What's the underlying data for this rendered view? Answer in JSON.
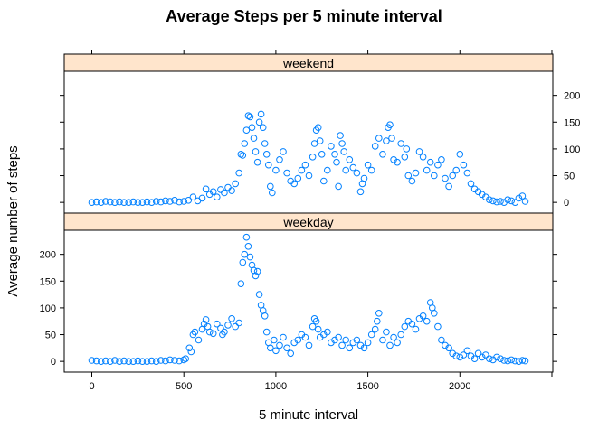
{
  "chart_data": {
    "type": "scatter",
    "title": "Average Steps per 5 minute interval",
    "xlabel": "5 minute interval",
    "ylabel": "Average number of steps",
    "xlim": [
      -150,
      2505
    ],
    "ylim": [
      -20,
      245
    ],
    "x_ticks": [
      0,
      500,
      1000,
      1500,
      2000
    ],
    "y_ticks": [
      0,
      50,
      100,
      150,
      200
    ],
    "grid": false,
    "point_color": "#0080ff",
    "strip_color": "#ffe5cc",
    "panels": [
      {
        "name": "weekend",
        "points": [
          [
            0,
            0
          ],
          [
            25,
            1
          ],
          [
            50,
            0
          ],
          [
            75,
            2
          ],
          [
            100,
            1
          ],
          [
            125,
            0
          ],
          [
            150,
            1
          ],
          [
            175,
            0
          ],
          [
            200,
            0
          ],
          [
            225,
            1
          ],
          [
            250,
            0
          ],
          [
            275,
            0
          ],
          [
            300,
            1
          ],
          [
            325,
            0
          ],
          [
            350,
            2
          ],
          [
            375,
            1
          ],
          [
            400,
            3
          ],
          [
            425,
            2
          ],
          [
            450,
            4
          ],
          [
            475,
            1
          ],
          [
            500,
            2
          ],
          [
            525,
            4
          ],
          [
            550,
            10
          ],
          [
            575,
            3
          ],
          [
            600,
            8
          ],
          [
            620,
            25
          ],
          [
            640,
            15
          ],
          [
            660,
            20
          ],
          [
            680,
            10
          ],
          [
            700,
            24
          ],
          [
            720,
            18
          ],
          [
            740,
            28
          ],
          [
            760,
            22
          ],
          [
            780,
            35
          ],
          [
            800,
            55
          ],
          [
            810,
            90
          ],
          [
            820,
            88
          ],
          [
            830,
            110
          ],
          [
            840,
            135
          ],
          [
            850,
            162
          ],
          [
            860,
            160
          ],
          [
            870,
            140
          ],
          [
            880,
            120
          ],
          [
            890,
            95
          ],
          [
            900,
            75
          ],
          [
            910,
            150
          ],
          [
            920,
            165
          ],
          [
            930,
            140
          ],
          [
            940,
            110
          ],
          [
            950,
            90
          ],
          [
            960,
            70
          ],
          [
            970,
            30
          ],
          [
            980,
            18
          ],
          [
            1000,
            60
          ],
          [
            1020,
            80
          ],
          [
            1040,
            95
          ],
          [
            1060,
            55
          ],
          [
            1080,
            40
          ],
          [
            1100,
            35
          ],
          [
            1120,
            45
          ],
          [
            1140,
            60
          ],
          [
            1160,
            70
          ],
          [
            1180,
            50
          ],
          [
            1200,
            85
          ],
          [
            1210,
            110
          ],
          [
            1220,
            135
          ],
          [
            1230,
            140
          ],
          [
            1240,
            115
          ],
          [
            1250,
            90
          ],
          [
            1260,
            40
          ],
          [
            1280,
            60
          ],
          [
            1300,
            105
          ],
          [
            1320,
            90
          ],
          [
            1330,
            75
          ],
          [
            1340,
            30
          ],
          [
            1350,
            125
          ],
          [
            1360,
            110
          ],
          [
            1370,
            95
          ],
          [
            1380,
            60
          ],
          [
            1400,
            80
          ],
          [
            1420,
            65
          ],
          [
            1440,
            55
          ],
          [
            1460,
            20
          ],
          [
            1470,
            35
          ],
          [
            1480,
            45
          ],
          [
            1500,
            70
          ],
          [
            1520,
            60
          ],
          [
            1540,
            105
          ],
          [
            1560,
            120
          ],
          [
            1580,
            90
          ],
          [
            1600,
            115
          ],
          [
            1610,
            140
          ],
          [
            1620,
            145
          ],
          [
            1630,
            120
          ],
          [
            1640,
            80
          ],
          [
            1660,
            75
          ],
          [
            1680,
            110
          ],
          [
            1700,
            85
          ],
          [
            1710,
            100
          ],
          [
            1720,
            50
          ],
          [
            1740,
            40
          ],
          [
            1760,
            55
          ],
          [
            1780,
            95
          ],
          [
            1800,
            85
          ],
          [
            1820,
            60
          ],
          [
            1840,
            75
          ],
          [
            1860,
            50
          ],
          [
            1880,
            70
          ],
          [
            1900,
            80
          ],
          [
            1920,
            45
          ],
          [
            1940,
            30
          ],
          [
            1960,
            50
          ],
          [
            1980,
            60
          ],
          [
            2000,
            90
          ],
          [
            2020,
            70
          ],
          [
            2040,
            55
          ],
          [
            2060,
            35
          ],
          [
            2080,
            25
          ],
          [
            2100,
            20
          ],
          [
            2120,
            15
          ],
          [
            2140,
            10
          ],
          [
            2160,
            5
          ],
          [
            2180,
            3
          ],
          [
            2200,
            1
          ],
          [
            2220,
            2
          ],
          [
            2240,
            0
          ],
          [
            2260,
            5
          ],
          [
            2280,
            3
          ],
          [
            2300,
            0
          ],
          [
            2320,
            8
          ],
          [
            2340,
            12
          ],
          [
            2355,
            2
          ]
        ]
      },
      {
        "name": "weekday",
        "points": [
          [
            0,
            2
          ],
          [
            25,
            1
          ],
          [
            50,
            0
          ],
          [
            75,
            1
          ],
          [
            100,
            0
          ],
          [
            125,
            2
          ],
          [
            150,
            0
          ],
          [
            175,
            1
          ],
          [
            200,
            0
          ],
          [
            225,
            0
          ],
          [
            250,
            1
          ],
          [
            275,
            0
          ],
          [
            300,
            0
          ],
          [
            325,
            1
          ],
          [
            350,
            0
          ],
          [
            375,
            2
          ],
          [
            400,
            1
          ],
          [
            425,
            3
          ],
          [
            450,
            2
          ],
          [
            475,
            1
          ],
          [
            500,
            3
          ],
          [
            510,
            5
          ],
          [
            530,
            25
          ],
          [
            540,
            18
          ],
          [
            550,
            50
          ],
          [
            560,
            55
          ],
          [
            580,
            40
          ],
          [
            600,
            60
          ],
          [
            610,
            70
          ],
          [
            620,
            78
          ],
          [
            630,
            65
          ],
          [
            640,
            55
          ],
          [
            660,
            52
          ],
          [
            680,
            70
          ],
          [
            700,
            62
          ],
          [
            710,
            50
          ],
          [
            720,
            55
          ],
          [
            740,
            68
          ],
          [
            760,
            80
          ],
          [
            780,
            65
          ],
          [
            800,
            72
          ],
          [
            810,
            145
          ],
          [
            820,
            185
          ],
          [
            830,
            200
          ],
          [
            840,
            232
          ],
          [
            850,
            215
          ],
          [
            860,
            195
          ],
          [
            870,
            180
          ],
          [
            880,
            170
          ],
          [
            890,
            160
          ],
          [
            900,
            168
          ],
          [
            910,
            125
          ],
          [
            920,
            105
          ],
          [
            930,
            95
          ],
          [
            940,
            85
          ],
          [
            950,
            55
          ],
          [
            960,
            35
          ],
          [
            970,
            25
          ],
          [
            990,
            40
          ],
          [
            1000,
            20
          ],
          [
            1020,
            30
          ],
          [
            1040,
            45
          ],
          [
            1060,
            25
          ],
          [
            1080,
            15
          ],
          [
            1100,
            35
          ],
          [
            1120,
            40
          ],
          [
            1140,
            50
          ],
          [
            1160,
            45
          ],
          [
            1180,
            30
          ],
          [
            1200,
            65
          ],
          [
            1210,
            80
          ],
          [
            1220,
            75
          ],
          [
            1230,
            60
          ],
          [
            1240,
            45
          ],
          [
            1260,
            50
          ],
          [
            1280,
            55
          ],
          [
            1300,
            35
          ],
          [
            1320,
            40
          ],
          [
            1340,
            45
          ],
          [
            1360,
            30
          ],
          [
            1380,
            40
          ],
          [
            1400,
            25
          ],
          [
            1420,
            35
          ],
          [
            1440,
            40
          ],
          [
            1460,
            30
          ],
          [
            1480,
            25
          ],
          [
            1500,
            35
          ],
          [
            1520,
            50
          ],
          [
            1540,
            60
          ],
          [
            1550,
            75
          ],
          [
            1560,
            90
          ],
          [
            1580,
            40
          ],
          [
            1600,
            55
          ],
          [
            1620,
            30
          ],
          [
            1640,
            45
          ],
          [
            1660,
            35
          ],
          [
            1680,
            50
          ],
          [
            1700,
            65
          ],
          [
            1720,
            75
          ],
          [
            1740,
            70
          ],
          [
            1760,
            60
          ],
          [
            1780,
            80
          ],
          [
            1800,
            85
          ],
          [
            1820,
            75
          ],
          [
            1840,
            110
          ],
          [
            1850,
            100
          ],
          [
            1860,
            90
          ],
          [
            1880,
            65
          ],
          [
            1900,
            40
          ],
          [
            1920,
            30
          ],
          [
            1940,
            25
          ],
          [
            1960,
            15
          ],
          [
            1980,
            10
          ],
          [
            2000,
            8
          ],
          [
            2020,
            12
          ],
          [
            2040,
            20
          ],
          [
            2060,
            10
          ],
          [
            2080,
            5
          ],
          [
            2100,
            15
          ],
          [
            2120,
            8
          ],
          [
            2140,
            12
          ],
          [
            2160,
            5
          ],
          [
            2180,
            3
          ],
          [
            2200,
            8
          ],
          [
            2220,
            5
          ],
          [
            2240,
            2
          ],
          [
            2260,
            1
          ],
          [
            2280,
            3
          ],
          [
            2300,
            1
          ],
          [
            2320,
            0
          ],
          [
            2340,
            2
          ],
          [
            2355,
            1
          ]
        ]
      }
    ]
  }
}
